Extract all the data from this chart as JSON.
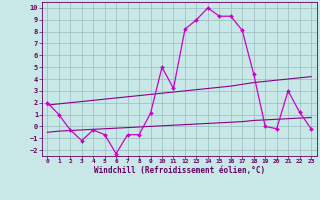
{
  "x": [
    0,
    1,
    2,
    3,
    4,
    5,
    6,
    7,
    8,
    9,
    10,
    11,
    12,
    13,
    14,
    15,
    16,
    17,
    18,
    19,
    20,
    21,
    22,
    23
  ],
  "y_main": [
    2.0,
    1.0,
    -0.3,
    -1.2,
    -0.3,
    -0.7,
    -2.3,
    -0.7,
    -0.7,
    1.1,
    5.0,
    3.2,
    8.2,
    9.0,
    10.0,
    9.3,
    9.3,
    8.1,
    4.4,
    0.0,
    -0.2,
    3.0,
    1.2,
    -0.2
  ],
  "y_upper": [
    1.8,
    1.9,
    2.0,
    2.1,
    2.2,
    2.3,
    2.4,
    2.5,
    2.6,
    2.7,
    2.8,
    2.9,
    3.0,
    3.1,
    3.2,
    3.3,
    3.4,
    3.55,
    3.7,
    3.8,
    3.9,
    4.0,
    4.1,
    4.2
  ],
  "y_lower": [
    -0.5,
    -0.4,
    -0.35,
    -0.3,
    -0.25,
    -0.2,
    -0.15,
    -0.1,
    -0.05,
    0.0,
    0.05,
    0.1,
    0.15,
    0.2,
    0.25,
    0.3,
    0.35,
    0.4,
    0.5,
    0.55,
    0.6,
    0.65,
    0.7,
    0.75
  ],
  "line_color_dark": "#880088",
  "line_color_bright": "#cc00cc",
  "bg_color": "#c8e8e8",
  "grid_color": "#99bbbb",
  "text_color": "#660066",
  "xlabel": "Windchill (Refroidissement éolien,°C)",
  "ylim": [
    -2.5,
    10.5
  ],
  "xlim": [
    -0.5,
    23.5
  ],
  "yticks": [
    -2,
    -1,
    0,
    1,
    2,
    3,
    4,
    5,
    6,
    7,
    8,
    9,
    10
  ],
  "xticks": [
    0,
    1,
    2,
    3,
    4,
    5,
    6,
    7,
    8,
    9,
    10,
    11,
    12,
    13,
    14,
    15,
    16,
    17,
    18,
    19,
    20,
    21,
    22,
    23
  ]
}
